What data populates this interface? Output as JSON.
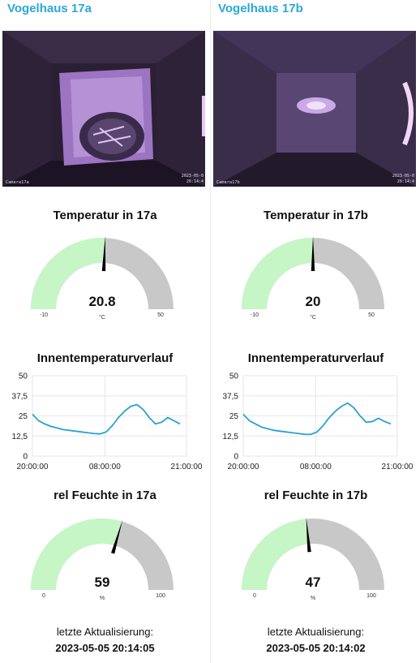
{
  "panels": [
    {
      "title": "Vogelhaus 17a",
      "camera": {
        "label": "Camera17a",
        "stamp_line1": "2023-05-0",
        "stamp_line2": "20:14:4"
      },
      "temperature": {
        "title": "Temperatur in 17a",
        "value": "20.8",
        "value_num": 20.8,
        "unit": "°C",
        "min": -10,
        "max": 50,
        "min_label": "-10",
        "max_label": "50"
      },
      "history": {
        "title": "Innentemperaturverlauf",
        "y_ticks": [
          "50",
          "37,5",
          "25",
          "12,5",
          "0"
        ],
        "x_ticks": [
          "20:00:00",
          "08:00:00",
          "21:00:00"
        ]
      },
      "humidity": {
        "title": "rel Feuchte in 17a",
        "value": "59",
        "value_num": 59,
        "unit": "%",
        "min": 0,
        "max": 100,
        "min_label": "0",
        "max_label": "100"
      },
      "last_update": {
        "label": "letzte Aktualisierung:",
        "value": "2023-05-05 20:14:05"
      }
    },
    {
      "title": "Vogelhaus 17b",
      "camera": {
        "label": "Camera17b",
        "stamp_line1": "2023-05-0",
        "stamp_line2": "20:14:4"
      },
      "temperature": {
        "title": "Temperatur in 17b",
        "value": "20",
        "value_num": 20,
        "unit": "°C",
        "min": -10,
        "max": 50,
        "min_label": "-10",
        "max_label": "50"
      },
      "history": {
        "title": "Innentemperaturverlauf",
        "y_ticks": [
          "50",
          "37,5",
          "25",
          "12,5",
          "0"
        ],
        "x_ticks": [
          "20:00:00",
          "08:00:00",
          "21:00:00"
        ]
      },
      "humidity": {
        "title": "rel Feuchte in 17b",
        "value": "47",
        "value_num": 47,
        "unit": "%",
        "min": 0,
        "max": 100,
        "min_label": "0",
        "max_label": "100"
      },
      "last_update": {
        "label": "letzte Aktualisierung:",
        "value": "2023-05-05 20:14:02"
      }
    }
  ],
  "colors": {
    "title": "#2aa8d8",
    "gauge_fill": "#c6f5c6",
    "gauge_track": "#c8c8c8",
    "line": "#2aa1cf",
    "grid": "#e6e6e6"
  },
  "chart_data": [
    {
      "type": "line",
      "title": "Innentemperaturverlauf",
      "ylim": [
        0,
        50
      ],
      "x": [
        0,
        1,
        2,
        3,
        4,
        5,
        6,
        7,
        8,
        9,
        10,
        11,
        12,
        13,
        14,
        15,
        16,
        17,
        18,
        19,
        20,
        21,
        22,
        23,
        24
      ],
      "series": [
        {
          "values": [
            26,
            22,
            20,
            18.5,
            17.5,
            16.5,
            16,
            15.5,
            15,
            14.5,
            14,
            13.8,
            15,
            19,
            24,
            28,
            31,
            32,
            29,
            24,
            20,
            21,
            24,
            22,
            20
          ]
        }
      ]
    },
    {
      "type": "line",
      "title": "Innentemperaturverlauf",
      "ylim": [
        0,
        50
      ],
      "x": [
        0,
        1,
        2,
        3,
        4,
        5,
        6,
        7,
        8,
        9,
        10,
        11,
        12,
        13,
        14,
        15,
        16,
        17,
        18,
        19,
        20,
        21,
        22,
        23,
        24
      ],
      "series": [
        {
          "values": [
            26,
            22,
            20,
            18,
            17,
            16,
            15.5,
            15,
            14.5,
            14,
            13.5,
            13.5,
            15,
            19,
            24,
            28,
            31,
            33,
            30,
            25,
            21,
            21.5,
            23.5,
            21.5,
            20
          ]
        }
      ]
    }
  ]
}
